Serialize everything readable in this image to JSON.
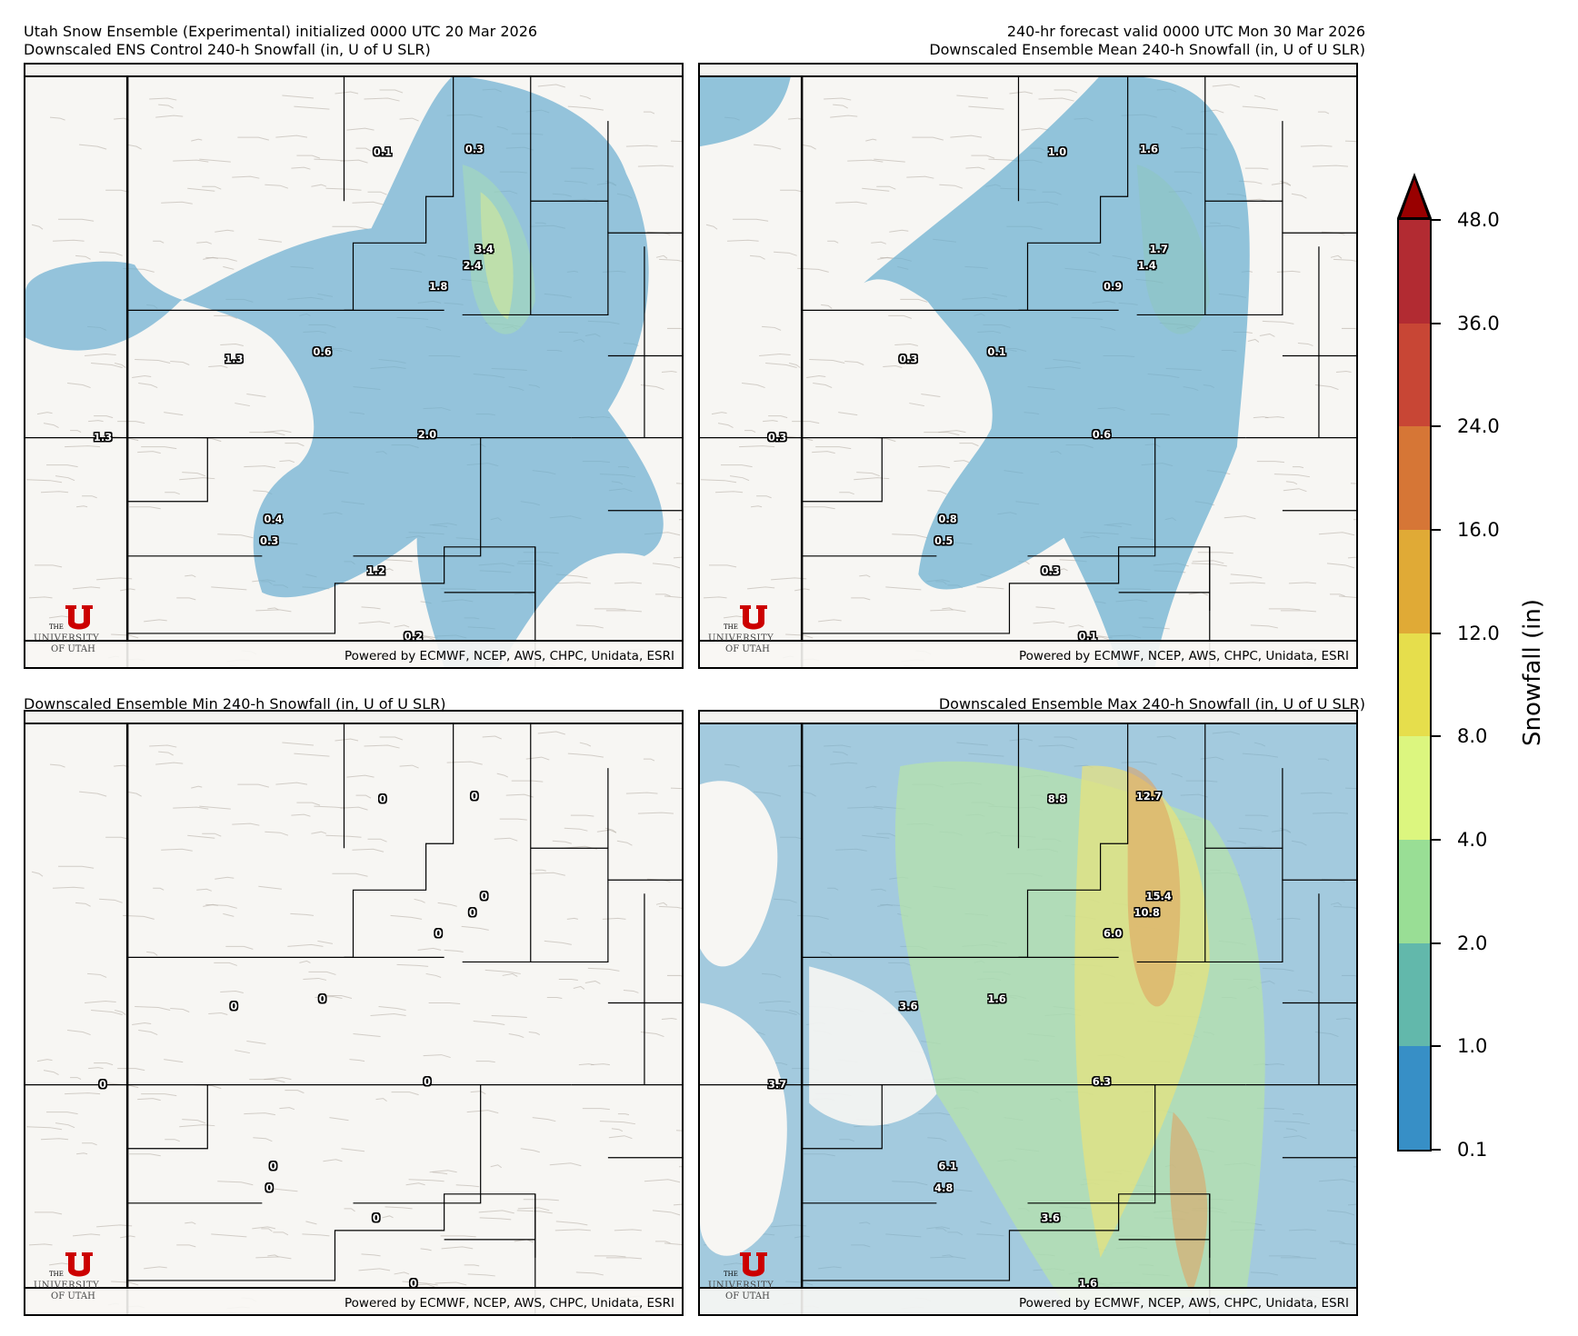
{
  "header": {
    "left_line1": "Utah Snow Ensemble (Experimental) initialized 0000 UTC 20 Mar 2026",
    "left_line2": "Downscaled ENS Control 240-h Snowfall (in, U of U SLR)",
    "right_line1": "240-hr forecast valid 0000 UTC Mon 30 Mar 2026",
    "right_line2": "Downscaled Ensemble Mean 240-h Snowfall (in, U of U SLR)",
    "bottom_left": "Downscaled Ensemble Min 240-h Snowfall (in, U of U SLR)",
    "bottom_right": "Downscaled Ensemble Max 240-h Snowfall (in, U of U SLR)"
  },
  "footer": {
    "powered_by": "Powered by ECMWF, NCEP, AWS, CHPC, Unidata, ESRI",
    "logo_the": "THE",
    "logo_university": "UNIVERSITY",
    "logo_of_utah": "OF UTAH",
    "logo_color": "#cc0000"
  },
  "colorbar": {
    "label": "Snowfall (in)",
    "ticks": [
      "48.0",
      "36.0",
      "24.0",
      "16.0",
      "12.0",
      "8.0",
      "4.0",
      "2.0",
      "1.0",
      "0.1"
    ],
    "colors_top_to_bottom": [
      "#b22b32",
      "#c84635",
      "#d67636",
      "#e0aa36",
      "#e6de4c",
      "#dcf67f",
      "#99de95",
      "#62b8ab",
      "#378fc6"
    ],
    "extend_color": "#990000"
  },
  "chart_data": [
    {
      "type": "heatmap",
      "title": "Downscaled ENS Control 240-h Snowfall (in, U of U SLR)",
      "point_labels": [
        {
          "value": "0.1",
          "x": 0.545,
          "y": 0.145
        },
        {
          "value": "0.3",
          "x": 0.685,
          "y": 0.14
        },
        {
          "value": "3.4",
          "x": 0.7,
          "y": 0.306
        },
        {
          "value": "2.4",
          "x": 0.682,
          "y": 0.334
        },
        {
          "value": "1.8",
          "x": 0.63,
          "y": 0.368
        },
        {
          "value": "0.6",
          "x": 0.453,
          "y": 0.478
        },
        {
          "value": "1.3",
          "x": 0.318,
          "y": 0.49
        },
        {
          "value": "2.0",
          "x": 0.613,
          "y": 0.615
        },
        {
          "value": "1.3",
          "x": 0.118,
          "y": 0.62
        },
        {
          "value": "0.4",
          "x": 0.378,
          "y": 0.755
        },
        {
          "value": "0.3",
          "x": 0.372,
          "y": 0.792
        },
        {
          "value": "1.2",
          "x": 0.535,
          "y": 0.842
        },
        {
          "value": "0.2",
          "x": 0.592,
          "y": 0.95
        }
      ]
    },
    {
      "type": "heatmap",
      "title": "Downscaled Ensemble Mean 240-h Snowfall (in, U of U SLR)",
      "point_labels": [
        {
          "value": "1.0",
          "x": 0.545,
          "y": 0.145
        },
        {
          "value": "1.6",
          "x": 0.685,
          "y": 0.14
        },
        {
          "value": "1.7",
          "x": 0.7,
          "y": 0.306
        },
        {
          "value": "1.4",
          "x": 0.682,
          "y": 0.334
        },
        {
          "value": "0.9",
          "x": 0.63,
          "y": 0.368
        },
        {
          "value": "0.1",
          "x": 0.453,
          "y": 0.478
        },
        {
          "value": "0.3",
          "x": 0.318,
          "y": 0.49
        },
        {
          "value": "0.6",
          "x": 0.613,
          "y": 0.615
        },
        {
          "value": "0.3",
          "x": 0.118,
          "y": 0.62
        },
        {
          "value": "0.8",
          "x": 0.378,
          "y": 0.755
        },
        {
          "value": "0.5",
          "x": 0.372,
          "y": 0.792
        },
        {
          "value": "0.3",
          "x": 0.535,
          "y": 0.842
        },
        {
          "value": "0.1",
          "x": 0.592,
          "y": 0.95
        }
      ]
    },
    {
      "type": "heatmap",
      "title": "Downscaled Ensemble Min 240-h Snowfall (in, U of U SLR)",
      "point_labels": [
        {
          "value": "0",
          "x": 0.545,
          "y": 0.145
        },
        {
          "value": "0",
          "x": 0.685,
          "y": 0.14
        },
        {
          "value": "0",
          "x": 0.7,
          "y": 0.306
        },
        {
          "value": "0",
          "x": 0.682,
          "y": 0.334
        },
        {
          "value": "0",
          "x": 0.63,
          "y": 0.368
        },
        {
          "value": "0",
          "x": 0.453,
          "y": 0.478
        },
        {
          "value": "0",
          "x": 0.318,
          "y": 0.49
        },
        {
          "value": "0",
          "x": 0.613,
          "y": 0.615
        },
        {
          "value": "0",
          "x": 0.118,
          "y": 0.62
        },
        {
          "value": "0",
          "x": 0.378,
          "y": 0.755
        },
        {
          "value": "0",
          "x": 0.372,
          "y": 0.792
        },
        {
          "value": "0",
          "x": 0.535,
          "y": 0.842
        },
        {
          "value": "0",
          "x": 0.592,
          "y": 0.95
        }
      ]
    },
    {
      "type": "heatmap",
      "title": "Downscaled Ensemble Max 240-h Snowfall (in, U of U SLR)",
      "point_labels": [
        {
          "value": "8.8",
          "x": 0.545,
          "y": 0.145
        },
        {
          "value": "12.7",
          "x": 0.685,
          "y": 0.14
        },
        {
          "value": "15.4",
          "x": 0.7,
          "y": 0.306
        },
        {
          "value": "10.8",
          "x": 0.682,
          "y": 0.334
        },
        {
          "value": "6.0",
          "x": 0.63,
          "y": 0.368
        },
        {
          "value": "1.6",
          "x": 0.453,
          "y": 0.478
        },
        {
          "value": "3.6",
          "x": 0.318,
          "y": 0.49
        },
        {
          "value": "6.3",
          "x": 0.613,
          "y": 0.615
        },
        {
          "value": "3.7",
          "x": 0.118,
          "y": 0.62
        },
        {
          "value": "6.1",
          "x": 0.378,
          "y": 0.755
        },
        {
          "value": "4.8",
          "x": 0.372,
          "y": 0.792
        },
        {
          "value": "3.6",
          "x": 0.535,
          "y": 0.842
        },
        {
          "value": "1.6",
          "x": 0.592,
          "y": 0.95
        }
      ]
    }
  ]
}
